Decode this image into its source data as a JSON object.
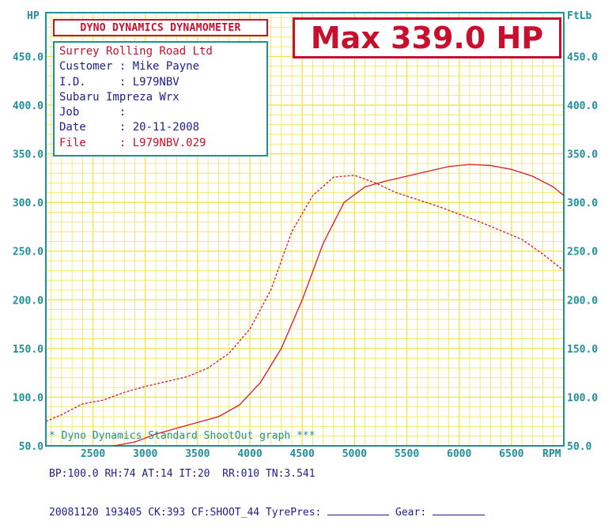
{
  "chart_data": {
    "type": "line",
    "title": "DYNO DYNAMICS DYNAMOMETER",
    "max_label": "Max 339.0 HP",
    "xlabel": "RPM",
    "ylabel_left": "HP",
    "ylabel_right": "FtLb",
    "xlim": [
      2050,
      7000
    ],
    "ylim": [
      50,
      495
    ],
    "grid": true,
    "x_ticks": [
      2500,
      3000,
      3500,
      4000,
      4500,
      5000,
      5500,
      6000,
      6500
    ],
    "y_ticks": [
      "50.0",
      "100.0",
      "150.0",
      "200.0",
      "250.0",
      "300.0",
      "350.0",
      "400.0",
      "450.0"
    ],
    "series": [
      {
        "name": "HP",
        "style": "solid",
        "color": "#d41c2c",
        "x": [
          2700,
          2900,
          3100,
          3300,
          3500,
          3700,
          3900,
          4100,
          4300,
          4500,
          4700,
          4900,
          5100,
          5300,
          5500,
          5700,
          5900,
          6100,
          6300,
          6500,
          6700,
          6900,
          7000
        ],
        "y": [
          47,
          54,
          62,
          68,
          74,
          80,
          92,
          115,
          150,
          200,
          258,
          300,
          316,
          322,
          327,
          332,
          337,
          339,
          338,
          334,
          327,
          316,
          307
        ]
      },
      {
        "name": "FtLb",
        "style": "dashed",
        "color": "#d41c2c",
        "x": [
          2050,
          2200,
          2400,
          2600,
          2800,
          3000,
          3200,
          3400,
          3600,
          3800,
          4000,
          4200,
          4400,
          4600,
          4800,
          5000,
          5200,
          5400,
          5600,
          5800,
          6000,
          6200,
          6400,
          6600,
          6800,
          7000
        ],
        "y": [
          75,
          82,
          93,
          97,
          105,
          111,
          116,
          121,
          130,
          145,
          170,
          210,
          270,
          307,
          326,
          328,
          320,
          310,
          303,
          296,
          288,
          280,
          271,
          262,
          247,
          230
        ]
      }
    ]
  },
  "info": {
    "company": "Surrey Rolling Road Ltd",
    "customer": "Customer : Mike Payne",
    "id": "I.D.     : L979NBV",
    "vehicle": "Subaru Impreza Wrx",
    "job": "Job      :",
    "date": "Date     : 20-11-2008",
    "file": "File     : L979NBV.029"
  },
  "footer": {
    "line1": "* Dyno Dynamics Standard ShootOut graph ***",
    "line2": "BP:100.0 RH:74 AT:14 IT:20  RR:010 TN:3.541",
    "line3_a": "20081120 193405 CK:393 CF:SHOOT_44 TyrePres: ",
    "line3_b": " Gear: "
  },
  "colors": {
    "grid": "#f2e650",
    "axis": "#1f8f9a",
    "curve": "#d41c2c",
    "text_blue": "#1e1e8c",
    "title_red": "#c8102e"
  }
}
